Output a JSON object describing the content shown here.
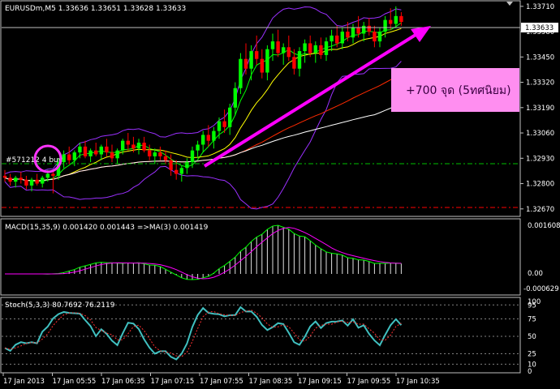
{
  "window": {
    "symbol_line": "EURUSDm,M5  1.33636 1.33651 1.33628 1.33633"
  },
  "price_panel": {
    "y_ticks": [
      "1.33710",
      "1.33580",
      "1.33450",
      "1.33320",
      "1.33190",
      "1.33060",
      "1.32930",
      "1.32800",
      "1.32670"
    ],
    "current_price": "1.33633",
    "order_label": "#571212 4 buy",
    "annotation": "+700 จุด (5ทศนิยม)",
    "colors": {
      "bull_candle": "#00ff00",
      "bear_candle": "#ff0000",
      "bollinger": "#9b30ff",
      "ma_fast": "#00ff00",
      "ma_yellow": "#ffff00",
      "ma_red": "#ff2a00",
      "ma_white": "#ffffff",
      "arrow": "#ff00ff",
      "annotation_box": "#ff8ef0"
    }
  },
  "macd_panel": {
    "label": "MACD(15,35,9) 0.001420 0.001443  =>MA(3) 0.001419",
    "y_ticks": [
      "0.001608",
      "0.00",
      "-0.000629"
    ]
  },
  "stoch_panel": {
    "label": "Stoch(5,3,3) 80.7692 76.2119",
    "y_ticks": [
      "100",
      "95",
      "75",
      "50",
      "25",
      "10",
      "0"
    ]
  },
  "time_axis": {
    "labels": [
      "17 Jan 2013",
      "17 Jan 05:55",
      "17 Jan 06:35",
      "17 Jan 07:15",
      "17 Jan 07:55",
      "17 Jan 08:35",
      "17 Jan 09:15",
      "17 Jan 09:55",
      "17 Jan 10:35"
    ]
  },
  "chart_data": {
    "type": "candlestick",
    "symbol": "EURUSDm",
    "timeframe": "M5",
    "open": 1.33636,
    "high": 1.33651,
    "low": 1.33628,
    "close": 1.33633,
    "ylim": [
      1.3264,
      1.3373
    ],
    "candles": [
      [
        1.3284,
        1.3287,
        1.3281,
        1.3283
      ],
      [
        1.3283,
        1.3285,
        1.3279,
        1.3281
      ],
      [
        1.3281,
        1.3284,
        1.3278,
        1.3283
      ],
      [
        1.3283,
        1.3286,
        1.328,
        1.3282
      ],
      [
        1.3282,
        1.3284,
        1.3277,
        1.3279
      ],
      [
        1.3279,
        1.3283,
        1.3276,
        1.3282
      ],
      [
        1.3282,
        1.3285,
        1.3279,
        1.328
      ],
      [
        1.328,
        1.3284,
        1.3278,
        1.3283
      ],
      [
        1.3283,
        1.3287,
        1.3281,
        1.3285
      ],
      [
        1.3285,
        1.3287,
        1.3275,
        1.3284
      ],
      [
        1.3284,
        1.3293,
        1.3282,
        1.3291
      ],
      [
        1.3291,
        1.3297,
        1.3288,
        1.3295
      ],
      [
        1.3295,
        1.3299,
        1.329,
        1.3292
      ],
      [
        1.3292,
        1.3297,
        1.3289,
        1.3296
      ],
      [
        1.3296,
        1.3301,
        1.3293,
        1.3299
      ],
      [
        1.3299,
        1.3302,
        1.3293,
        1.3294
      ],
      [
        1.3294,
        1.3298,
        1.3291,
        1.3297
      ],
      [
        1.3297,
        1.3301,
        1.3294,
        1.3295
      ],
      [
        1.3295,
        1.33,
        1.3292,
        1.3299
      ],
      [
        1.3299,
        1.3303,
        1.3294,
        1.3296
      ],
      [
        1.3296,
        1.33,
        1.3291,
        1.3293
      ],
      [
        1.3293,
        1.3298,
        1.329,
        1.3297
      ],
      [
        1.3297,
        1.3303,
        1.3295,
        1.3302
      ],
      [
        1.3302,
        1.3306,
        1.3297,
        1.33
      ],
      [
        1.33,
        1.3304,
        1.3296,
        1.3298
      ],
      [
        1.3298,
        1.3303,
        1.3295,
        1.3301
      ],
      [
        1.3301,
        1.3304,
        1.3296,
        1.3297
      ],
      [
        1.3297,
        1.33,
        1.3292,
        1.3294
      ],
      [
        1.3294,
        1.3298,
        1.329,
        1.3296
      ],
      [
        1.3296,
        1.3299,
        1.3292,
        1.3294
      ],
      [
        1.3294,
        1.3297,
        1.329,
        1.3292
      ],
      [
        1.3292,
        1.3295,
        1.3284,
        1.3287
      ],
      [
        1.3287,
        1.3292,
        1.3282,
        1.3285
      ],
      [
        1.3285,
        1.3289,
        1.3281,
        1.3288
      ],
      [
        1.3288,
        1.3293,
        1.3285,
        1.3291
      ],
      [
        1.3291,
        1.3299,
        1.3288,
        1.3297
      ],
      [
        1.3297,
        1.3302,
        1.3293,
        1.33
      ],
      [
        1.33,
        1.3307,
        1.3296,
        1.3305
      ],
      [
        1.3305,
        1.331,
        1.3299,
        1.3302
      ],
      [
        1.3302,
        1.3309,
        1.3298,
        1.3307
      ],
      [
        1.3307,
        1.3314,
        1.3303,
        1.3312
      ],
      [
        1.3312,
        1.3318,
        1.3306,
        1.3309
      ],
      [
        1.3309,
        1.3321,
        1.3305,
        1.3319
      ],
      [
        1.3319,
        1.3332,
        1.3315,
        1.3329
      ],
      [
        1.3329,
        1.3347,
        1.3326,
        1.3344
      ],
      [
        1.3344,
        1.3352,
        1.3336,
        1.3339
      ],
      [
        1.3339,
        1.3351,
        1.3333,
        1.3348
      ],
      [
        1.3348,
        1.3356,
        1.3341,
        1.3344
      ],
      [
        1.3344,
        1.3349,
        1.3334,
        1.3337
      ],
      [
        1.3337,
        1.3351,
        1.3333,
        1.3349
      ],
      [
        1.3349,
        1.3357,
        1.3343,
        1.3353
      ],
      [
        1.3353,
        1.3359,
        1.3345,
        1.3347
      ],
      [
        1.3347,
        1.3352,
        1.3341,
        1.335
      ],
      [
        1.335,
        1.3356,
        1.3343,
        1.3345
      ],
      [
        1.3345,
        1.3349,
        1.3336,
        1.3339
      ],
      [
        1.3339,
        1.335,
        1.3335,
        1.3348
      ],
      [
        1.3348,
        1.3354,
        1.3342,
        1.3352
      ],
      [
        1.3352,
        1.3356,
        1.3345,
        1.3347
      ],
      [
        1.3347,
        1.3353,
        1.3342,
        1.3351
      ],
      [
        1.3351,
        1.3355,
        1.3344,
        1.3346
      ],
      [
        1.3346,
        1.3355,
        1.3343,
        1.3353
      ],
      [
        1.3353,
        1.3359,
        1.3348,
        1.3356
      ],
      [
        1.3356,
        1.3361,
        1.335,
        1.3352
      ],
      [
        1.3352,
        1.336,
        1.3349,
        1.3358
      ],
      [
        1.3358,
        1.3363,
        1.3353,
        1.3355
      ],
      [
        1.3355,
        1.3362,
        1.3352,
        1.336
      ],
      [
        1.336,
        1.3366,
        1.3355,
        1.3357
      ],
      [
        1.3357,
        1.3363,
        1.3353,
        1.3361
      ],
      [
        1.3361,
        1.3365,
        1.3356,
        1.3358
      ],
      [
        1.3358,
        1.3361,
        1.335,
        1.3353
      ],
      [
        1.3353,
        1.336,
        1.335,
        1.3358
      ],
      [
        1.3358,
        1.3366,
        1.3355,
        1.3364
      ],
      [
        1.3364,
        1.337,
        1.3359,
        1.3362
      ],
      [
        1.3362,
        1.3371,
        1.336,
        1.3366
      ],
      [
        1.3366,
        1.3368,
        1.3361,
        1.3363
      ]
    ]
  }
}
